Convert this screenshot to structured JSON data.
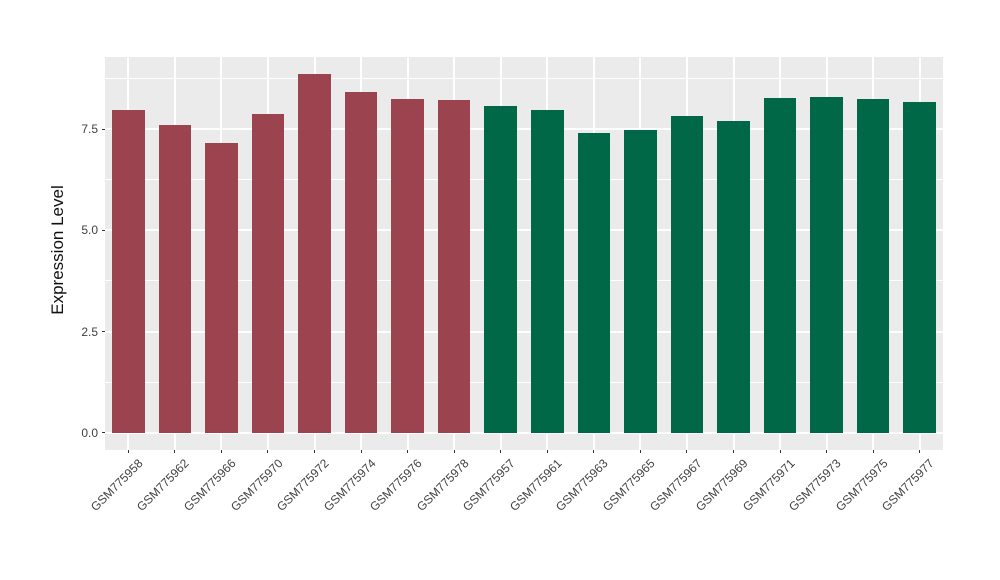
{
  "chart_data": {
    "type": "bar",
    "title": "",
    "xlabel": "",
    "ylabel": "Expression Level",
    "categories": [
      "GSM775958",
      "GSM775962",
      "GSM775966",
      "GSM775970",
      "GSM775972",
      "GSM775974",
      "GSM775976",
      "GSM775978",
      "GSM775957",
      "GSM775961",
      "GSM775963",
      "GSM775965",
      "GSM775967",
      "GSM775969",
      "GSM775971",
      "GSM775973",
      "GSM775975",
      "GSM775977"
    ],
    "values": [
      7.97,
      7.61,
      7.17,
      7.87,
      8.86,
      8.43,
      8.26,
      8.22,
      8.09,
      7.97,
      7.42,
      7.48,
      7.82,
      7.7,
      8.27,
      8.29,
      8.24,
      8.18
    ],
    "bar_colors": [
      "#9B4450",
      "#9B4450",
      "#9B4450",
      "#9B4450",
      "#9B4450",
      "#9B4450",
      "#9B4450",
      "#9B4450",
      "#006847",
      "#006847",
      "#006847",
      "#006847",
      "#006847",
      "#006847",
      "#006847",
      "#006847",
      "#006847",
      "#006847"
    ],
    "group_colors": {
      "left_group": "#9B4450",
      "right_group": "#006847"
    },
    "ytick_values": [
      0,
      2.5,
      5,
      7.5
    ],
    "ytick_labels": [
      "0.0",
      "2.5",
      "5.0",
      "7.5"
    ],
    "ylim": [
      -0.43,
      9.29
    ],
    "bar_width_fraction": 0.7,
    "panel_background": "#EBEBEB",
    "gridline_color": "#FFFFFF",
    "axis_text_color": "#404040",
    "x_label_rotation_deg": 45,
    "legend": "none",
    "grid": true
  }
}
